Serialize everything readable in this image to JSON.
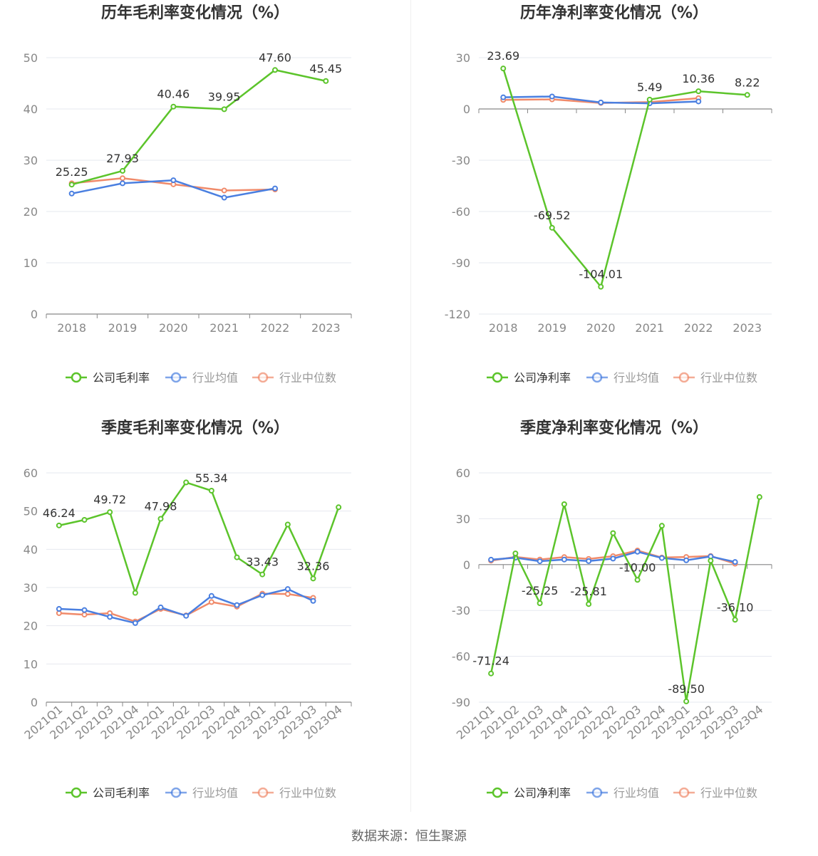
{
  "footer": {
    "source": "数据来源：恒生聚源"
  },
  "colors": {
    "company": "#5cc42b",
    "avg": "#4a7fe0",
    "median": "#f08a6a"
  },
  "chart_data": [
    {
      "type": "line",
      "title": "历年毛利率变化情况（%）",
      "categories": [
        "2018",
        "2019",
        "2020",
        "2021",
        "2022",
        "2023"
      ],
      "ylim": [
        0,
        50
      ],
      "yticks": [
        0,
        10,
        20,
        30,
        40,
        50
      ],
      "grid": true,
      "legend_position": "bottom",
      "series": [
        {
          "name": "公司毛利率",
          "values": [
            25.25,
            27.93,
            40.46,
            39.95,
            47.6,
            45.45
          ],
          "labels": [
            "25.25",
            "27.93",
            "40.46",
            "39.95",
            "47.60",
            "45.45"
          ]
        },
        {
          "name": "行业均值",
          "values": [
            23.5,
            25.5,
            26.1,
            22.7,
            24.5,
            null
          ]
        },
        {
          "name": "行业中位数",
          "values": [
            25.5,
            26.5,
            25.3,
            24.1,
            24.3,
            null
          ]
        }
      ]
    },
    {
      "type": "line",
      "title": "历年净利率变化情况（%）",
      "categories": [
        "2018",
        "2019",
        "2020",
        "2021",
        "2022",
        "2023"
      ],
      "ylim": [
        -120,
        30
      ],
      "yticks": [
        -120,
        -90,
        -60,
        -30,
        0,
        30
      ],
      "grid": true,
      "legend_position": "bottom",
      "series": [
        {
          "name": "公司净利率",
          "values": [
            23.69,
            -69.52,
            -104.01,
            5.49,
            10.36,
            8.22
          ],
          "labels": [
            "23.69",
            "-69.52",
            "-104.01",
            "5.49",
            "10.36",
            "8.22"
          ]
        },
        {
          "name": "行业均值",
          "values": [
            6.8,
            7.3,
            3.8,
            3.3,
            4.4,
            null
          ]
        },
        {
          "name": "行业中位数",
          "values": [
            5.3,
            5.6,
            3.5,
            4.0,
            6.3,
            null
          ]
        }
      ]
    },
    {
      "type": "line",
      "title": "季度毛利率变化情况（%）",
      "categories": [
        "2021Q1",
        "2021Q2",
        "2021Q3",
        "2021Q4",
        "2022Q1",
        "2022Q2",
        "2022Q3",
        "2022Q4",
        "2023Q1",
        "2023Q2",
        "2023Q3",
        "2023Q4"
      ],
      "ylim": [
        0,
        60
      ],
      "yticks": [
        0,
        10,
        20,
        30,
        40,
        50,
        60
      ],
      "grid": true,
      "legend_position": "bottom",
      "series": [
        {
          "name": "公司毛利率",
          "values": [
            46.24,
            47.7,
            49.72,
            28.6,
            47.98,
            57.5,
            55.34,
            37.9,
            33.43,
            46.5,
            32.36,
            51.0
          ],
          "labels": [
            "46.24",
            "",
            "49.72",
            "",
            "47.98",
            "",
            "55.34",
            "",
            "33.43",
            "",
            "32.36",
            ""
          ]
        },
        {
          "name": "行业均值",
          "values": [
            24.4,
            24.1,
            22.3,
            20.7,
            24.8,
            22.6,
            27.8,
            25.4,
            28.0,
            29.6,
            26.5,
            null
          ]
        },
        {
          "name": "行业中位数",
          "values": [
            23.3,
            22.9,
            23.3,
            21.1,
            24.4,
            22.7,
            26.2,
            25.0,
            28.4,
            28.3,
            27.3,
            null
          ]
        }
      ]
    },
    {
      "type": "line",
      "title": "季度净利率变化情况（%）",
      "categories": [
        "2021Q1",
        "2021Q2",
        "2021Q3",
        "2021Q4",
        "2022Q1",
        "2022Q2",
        "2022Q3",
        "2022Q4",
        "2023Q1",
        "2023Q2",
        "2023Q3",
        "2023Q4"
      ],
      "ylim": [
        -90,
        60
      ],
      "yticks": [
        -90,
        -60,
        -30,
        0,
        30,
        60
      ],
      "grid": true,
      "legend_position": "bottom",
      "series": [
        {
          "name": "公司净利率",
          "values": [
            -71.24,
            7.3,
            -25.25,
            39.5,
            -25.81,
            20.6,
            -10.0,
            25.4,
            -89.5,
            2.6,
            -36.1,
            44.2
          ],
          "labels": [
            "-71.24",
            "",
            "-25.25",
            "",
            "-25.81",
            "",
            "-10.00",
            "",
            "-89.50",
            "",
            "-36.10",
            ""
          ]
        },
        {
          "name": "行业均值",
          "values": [
            3.2,
            4.5,
            2.2,
            3.3,
            2.3,
            3.9,
            8.4,
            4.3,
            2.8,
            5.3,
            1.7,
            null
          ]
        },
        {
          "name": "行业中位数",
          "values": [
            2.6,
            5.0,
            3.3,
            4.9,
            3.7,
            5.5,
            9.2,
            4.6,
            5.0,
            5.6,
            0.6,
            null
          ]
        }
      ]
    }
  ]
}
